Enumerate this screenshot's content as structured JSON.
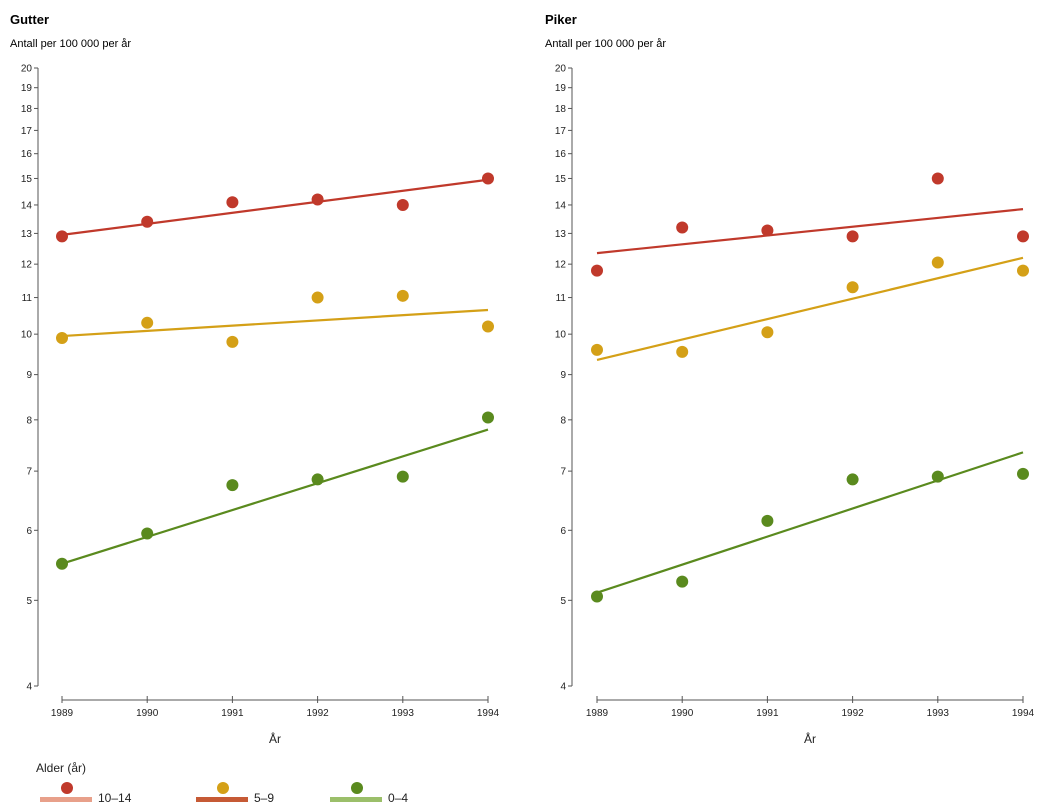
{
  "legend": {
    "title": "Alder (år)",
    "items": [
      {
        "label": "10–14",
        "color": "#c0392b",
        "line_color": "#e8a08a"
      },
      {
        "label": "5–9",
        "color": "#d4a017",
        "line_color": "#c65a35"
      },
      {
        "label": "0–4",
        "color": "#5a8a1e",
        "line_color": "#9bbf6a"
      }
    ]
  },
  "chart_data": [
    {
      "type": "scatter",
      "title": "Gutter",
      "subtitle": "Antall per 100 000 per år",
      "xlabel": "År",
      "ylabel": "",
      "x": [
        1989,
        1990,
        1991,
        1992,
        1993,
        1994
      ],
      "ylim": [
        4,
        20
      ],
      "yscale": "log",
      "yticks": [
        4,
        5,
        6,
        7,
        8,
        9,
        10,
        11,
        12,
        13,
        14,
        15,
        16,
        17,
        18,
        19,
        20
      ],
      "series": [
        {
          "name": "10–14",
          "color": "#c0392b",
          "values": [
            12.9,
            13.4,
            14.1,
            14.2,
            14.0,
            15.0
          ],
          "trend": [
            12.95,
            14.95
          ]
        },
        {
          "name": "5–9",
          "color": "#d4a017",
          "values": [
            9.9,
            10.3,
            9.8,
            11.0,
            11.05,
            10.2
          ],
          "trend": [
            9.95,
            10.65
          ]
        },
        {
          "name": "0–4",
          "color": "#5a8a1e",
          "values": [
            5.5,
            5.95,
            6.75,
            6.85,
            6.9,
            8.05
          ],
          "trend": [
            5.5,
            7.8
          ]
        }
      ]
    },
    {
      "type": "scatter",
      "title": "Piker",
      "subtitle": "Antall per 100 000 per år",
      "xlabel": "År",
      "ylabel": "",
      "x": [
        1989,
        1990,
        1991,
        1992,
        1993,
        1994
      ],
      "ylim": [
        4,
        20
      ],
      "yscale": "log",
      "yticks": [
        4,
        5,
        6,
        7,
        8,
        9,
        10,
        11,
        12,
        13,
        14,
        15,
        16,
        17,
        18,
        19,
        20
      ],
      "series": [
        {
          "name": "10–14",
          "color": "#c0392b",
          "values": [
            11.8,
            13.2,
            13.1,
            12.9,
            15.0,
            12.9
          ],
          "trend": [
            12.35,
            13.85
          ]
        },
        {
          "name": "5–9",
          "color": "#d4a017",
          "values": [
            9.6,
            9.55,
            10.05,
            11.3,
            12.05,
            11.8
          ],
          "trend": [
            9.35,
            12.2
          ]
        },
        {
          "name": "0–4",
          "color": "#5a8a1e",
          "values": [
            5.05,
            5.25,
            6.15,
            6.85,
            6.9,
            6.95
          ],
          "trend": [
            5.1,
            7.35
          ]
        }
      ]
    }
  ]
}
